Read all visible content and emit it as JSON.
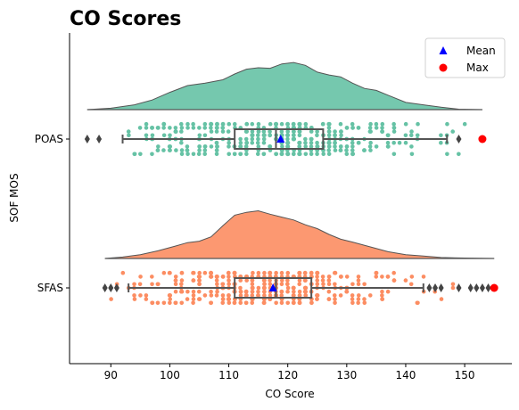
{
  "chart_data": {
    "type": "raincloud",
    "title": "CO Scores",
    "xlabel": "CO Score",
    "ylabel": "SOF MOS",
    "xlim": [
      83,
      158
    ],
    "xticks": [
      90,
      100,
      110,
      120,
      130,
      140,
      150
    ],
    "categories": [
      "POAS",
      "SFAS"
    ],
    "grid": false,
    "legend_position": "top-right",
    "legend": [
      {
        "label": "Mean",
        "marker": "triangle",
        "color": "#0000ff"
      },
      {
        "label": "Max",
        "marker": "circle",
        "color": "#ff0000"
      }
    ],
    "series": [
      {
        "name": "POAS",
        "color": "#66c2a5",
        "density": {
          "x": [
            86,
            90,
            94,
            97,
            100,
            103,
            106,
            109,
            111,
            113,
            115,
            117,
            119,
            121,
            123,
            125,
            127,
            129,
            131,
            133,
            135,
            137,
            140,
            143,
            146,
            149,
            153
          ],
          "y": [
            0.0,
            0.03,
            0.1,
            0.2,
            0.36,
            0.5,
            0.55,
            0.62,
            0.74,
            0.84,
            0.87,
            0.86,
            0.95,
            0.98,
            0.92,
            0.78,
            0.72,
            0.68,
            0.55,
            0.44,
            0.4,
            0.3,
            0.15,
            0.1,
            0.05,
            0.01,
            0.0
          ]
        },
        "box": {
          "whisker_low": 92,
          "q1": 111,
          "median": 118,
          "q3": 126,
          "whisker_high": 147
        },
        "mean": 118.8,
        "max": 153,
        "outliers": [
          86,
          88,
          149
        ],
        "strip_range": [
          92,
          151
        ]
      },
      {
        "name": "SFAS",
        "color": "#fc8d62",
        "density": {
          "x": [
            89,
            92,
            95,
            98,
            101,
            103,
            105,
            107,
            109,
            111,
            113,
            115,
            117,
            119,
            121,
            123,
            125,
            127,
            129,
            131,
            134,
            137,
            140,
            143,
            146,
            150,
            155
          ],
          "y": [
            0.0,
            0.03,
            0.08,
            0.16,
            0.26,
            0.33,
            0.36,
            0.45,
            0.68,
            0.9,
            0.96,
            0.99,
            0.92,
            0.86,
            0.8,
            0.7,
            0.62,
            0.5,
            0.4,
            0.34,
            0.24,
            0.14,
            0.08,
            0.05,
            0.02,
            0.01,
            0.0
          ]
        },
        "box": {
          "whisker_low": 93,
          "q1": 111,
          "median": 118,
          "q3": 124,
          "whisker_high": 143
        },
        "mean": 117.5,
        "max": 155,
        "outliers": [
          89,
          90,
          91,
          144,
          145,
          146,
          149,
          151,
          152,
          153,
          154
        ],
        "strip_range": [
          89,
          151
        ]
      }
    ]
  }
}
